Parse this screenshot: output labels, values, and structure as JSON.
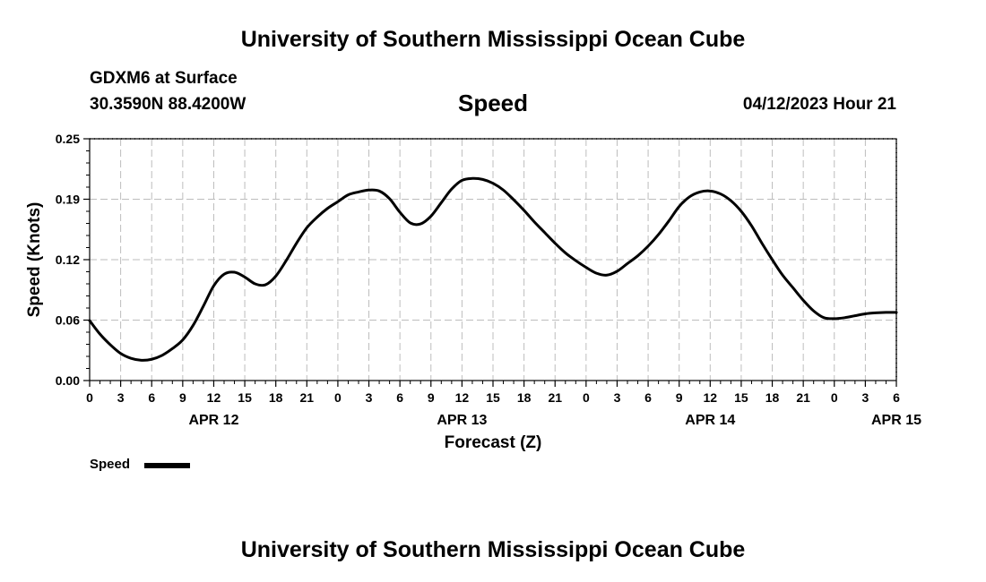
{
  "header": {
    "title": "University of Southern Mississippi Ocean Cube",
    "station": "GDXM6 at Surface",
    "coordinates": "30.3590N  88.4200W",
    "datetime": "04/12/2023 Hour 21",
    "footer_title": "University of Southern Mississippi Ocean Cube"
  },
  "chart_data": {
    "type": "line",
    "title": "Speed",
    "xlabel": "Forecast (Z)",
    "ylabel": "Speed (Knots)",
    "ylim": [
      0,
      0.25
    ],
    "xlim_hours": [
      0,
      78
    ],
    "grid": true,
    "legend_position": "bottom-left",
    "y_ticks": [
      "0.00",
      "0.06",
      "0.12",
      "0.19",
      "0.25"
    ],
    "y_tick_values": [
      0,
      0.0625,
      0.125,
      0.1875,
      0.25
    ],
    "x_tick_labels": [
      "0",
      "3",
      "6",
      "9",
      "12",
      "15",
      "18",
      "21",
      "0",
      "3",
      "6",
      "9",
      "12",
      "15",
      "18",
      "21",
      "0",
      "3",
      "6",
      "9",
      "12",
      "15",
      "18",
      "21",
      "0",
      "3",
      "6"
    ],
    "date_labels": [
      {
        "label": "APR 12",
        "hour": 12
      },
      {
        "label": "APR 13",
        "hour": 36
      },
      {
        "label": "APR 14",
        "hour": 60
      },
      {
        "label": "APR 15",
        "hour": 78
      }
    ],
    "series": [
      {
        "name": "Speed",
        "color": "#000000",
        "x": [
          0,
          1,
          2,
          3,
          4,
          5,
          6,
          7,
          8,
          9,
          10,
          11,
          12,
          13,
          14,
          15,
          16,
          17,
          18,
          19,
          20,
          21,
          22,
          23,
          24,
          25,
          26,
          27,
          28,
          29,
          30,
          31,
          32,
          33,
          34,
          35,
          36,
          37,
          38,
          39,
          40,
          41,
          42,
          43,
          44,
          45,
          46,
          47,
          48,
          49,
          50,
          51,
          52,
          53,
          54,
          55,
          56,
          57,
          58,
          59,
          60,
          61,
          62,
          63,
          64,
          65,
          66,
          67,
          68,
          69,
          70,
          71,
          72,
          73,
          74,
          75,
          76,
          77,
          78
        ],
        "values": [
          0.062,
          0.048,
          0.037,
          0.028,
          0.023,
          0.021,
          0.022,
          0.026,
          0.033,
          0.042,
          0.057,
          0.077,
          0.098,
          0.11,
          0.112,
          0.107,
          0.1,
          0.099,
          0.108,
          0.124,
          0.142,
          0.158,
          0.169,
          0.178,
          0.185,
          0.192,
          0.195,
          0.197,
          0.196,
          0.188,
          0.174,
          0.163,
          0.162,
          0.17,
          0.184,
          0.198,
          0.207,
          0.209,
          0.208,
          0.204,
          0.197,
          0.187,
          0.176,
          0.164,
          0.153,
          0.142,
          0.132,
          0.124,
          0.117,
          0.111,
          0.109,
          0.113,
          0.121,
          0.129,
          0.139,
          0.151,
          0.165,
          0.18,
          0.19,
          0.195,
          0.196,
          0.193,
          0.186,
          0.175,
          0.16,
          0.142,
          0.125,
          0.109,
          0.096,
          0.083,
          0.072,
          0.065,
          0.064,
          0.065,
          0.067,
          0.069,
          0.07,
          0.0705,
          0.0705
        ]
      }
    ]
  }
}
